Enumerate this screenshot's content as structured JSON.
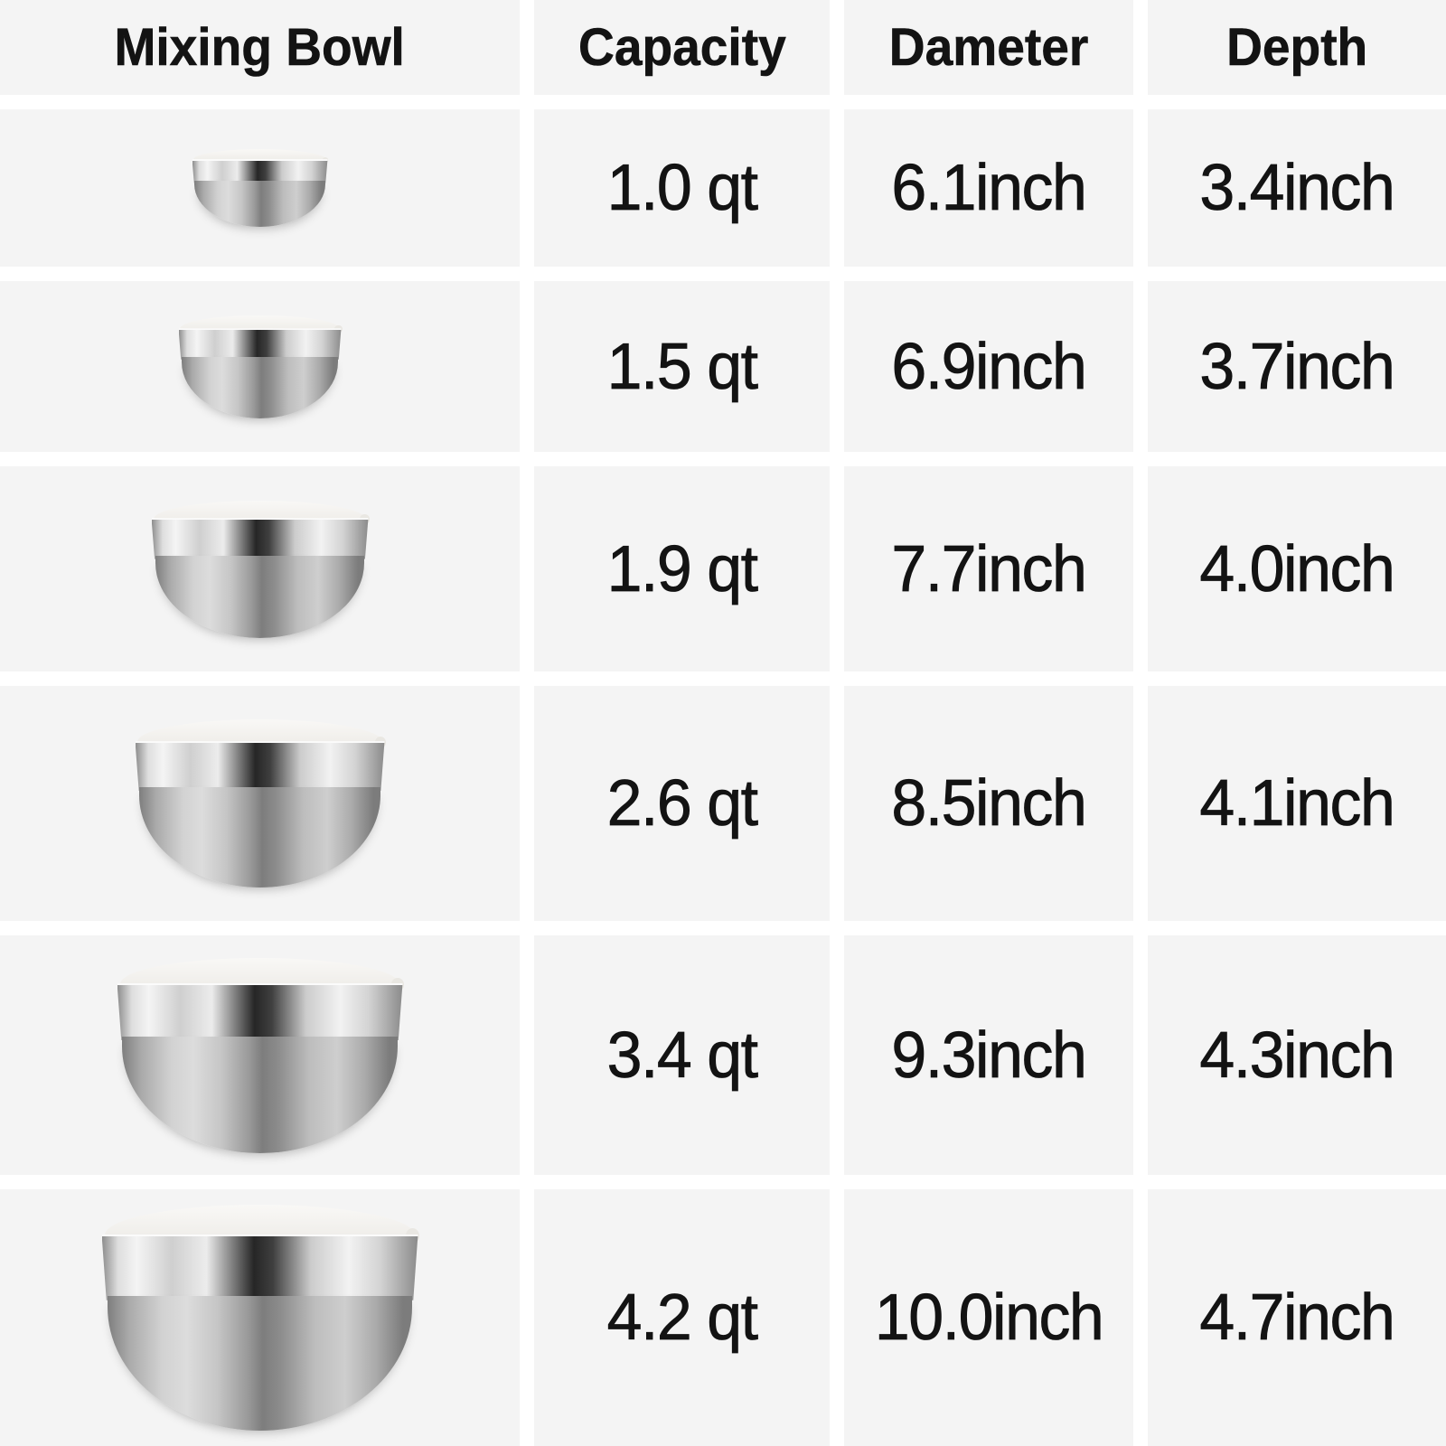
{
  "headers": {
    "product": "Mixing Bowl",
    "capacity": "Capacity",
    "diameter": "Dameter",
    "depth": "Depth"
  },
  "table": {
    "rows": [
      {
        "image": "stainless-bowl-with-white-lid-size-1",
        "capacity": "1.0 qt",
        "diameter": "6.1inch",
        "depth": "3.4inch"
      },
      {
        "image": "stainless-bowl-with-white-lid-size-2",
        "capacity": "1.5 qt",
        "diameter": "6.9inch",
        "depth": "3.7inch"
      },
      {
        "image": "stainless-bowl-with-white-lid-size-3",
        "capacity": "1.9 qt",
        "diameter": "7.7inch",
        "depth": "4.0inch"
      },
      {
        "image": "stainless-bowl-with-white-lid-size-4",
        "capacity": "2.6 qt",
        "diameter": "8.5inch",
        "depth": "4.1inch"
      },
      {
        "image": "stainless-bowl-with-white-lid-size-5",
        "capacity": "3.4 qt",
        "diameter": "9.3inch",
        "depth": "4.3inch"
      },
      {
        "image": "stainless-bowl-with-white-lid-size-6",
        "capacity": "4.2 qt",
        "diameter": "10.0inch",
        "depth": "4.7inch"
      }
    ]
  },
  "chart_data": {
    "type": "table",
    "title": "Mixing Bowl size specifications",
    "columns": [
      "Mixing Bowl",
      "Capacity",
      "Dameter",
      "Depth"
    ],
    "rows": [
      [
        "bowl image (smallest)",
        "1.0 qt",
        "6.1inch",
        "3.4inch"
      ],
      [
        "bowl image",
        "1.5 qt",
        "6.9inch",
        "3.7inch"
      ],
      [
        "bowl image",
        "1.9 qt",
        "7.7inch",
        "4.0inch"
      ],
      [
        "bowl image",
        "2.6 qt",
        "8.5inch",
        "4.1inch"
      ],
      [
        "bowl image",
        "3.4 qt",
        "9.3inch",
        "4.3inch"
      ],
      [
        "bowl image (largest)",
        "4.2 qt",
        "10.0inch",
        "4.7inch"
      ]
    ],
    "capacity_qt": [
      1.0,
      1.5,
      1.9,
      2.6,
      3.4,
      4.2
    ],
    "diameter_inch": [
      6.1,
      6.9,
      7.7,
      8.5,
      9.3,
      10.0
    ],
    "depth_inch": [
      3.4,
      3.7,
      4.0,
      4.1,
      4.3,
      4.7
    ]
  },
  "colors": {
    "cell_background": "#f4f4f4",
    "gap": "#ffffff",
    "text": "#131313",
    "steel_light": "#ececec",
    "steel_dark": "#262626",
    "lid": "#efede9"
  }
}
